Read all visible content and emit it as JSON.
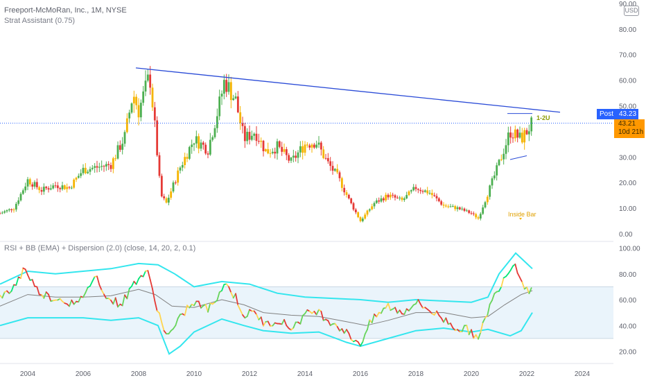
{
  "legend": {
    "title": "Freeport-McMoRan, Inc., 1M, NYSE",
    "indicator": "Strat Assistant (0.75)",
    "rsi_indicator": "RSI + BB (EMA) + Dispersion (2.0) (close, 14, 20, 2, 0.1)"
  },
  "currency": "USD",
  "post": {
    "label": "Post",
    "value": "43.23"
  },
  "last": {
    "value": "43.21",
    "countdown": "10d 21h"
  },
  "annotations": {
    "inside_bar": "Inside Bar",
    "pattern_marker": "1-2U"
  },
  "colors": {
    "up": "#26a69a",
    "down": "#ef5350",
    "neutral": "#f5b400",
    "trendline": "#2a4bd7",
    "bb": "#33e6ee",
    "rsi_mid": "#808080",
    "rsi_band": "#e8f3fb"
  },
  "chart_data": [
    {
      "type": "candlestick",
      "title": "Freeport-McMoRan, Inc., 1M, NYSE",
      "ylim": [
        0,
        90
      ],
      "yticks": [
        "0.00",
        "10.00",
        "20.00",
        "30.00",
        "40.00",
        "50.00",
        "60.00",
        "70.00",
        "80.00",
        "90.00"
      ],
      "xticks": [
        "2004",
        "2006",
        "2008",
        "2010",
        "2012",
        "2014",
        "2016",
        "2018",
        "2020",
        "2022",
        "2024"
      ],
      "price_path": [
        [
          2003.0,
          8
        ],
        [
          2003.5,
          10
        ],
        [
          2004.0,
          21
        ],
        [
          2004.5,
          17
        ],
        [
          2005.0,
          19
        ],
        [
          2005.5,
          18
        ],
        [
          2006.0,
          25
        ],
        [
          2006.5,
          26
        ],
        [
          2007.0,
          27
        ],
        [
          2007.5,
          38
        ],
        [
          2007.8,
          55
        ],
        [
          2008.0,
          48
        ],
        [
          2008.4,
          62
        ],
        [
          2008.6,
          40
        ],
        [
          2008.8,
          15
        ],
        [
          2009.0,
          12
        ],
        [
          2009.5,
          26
        ],
        [
          2010.0,
          37
        ],
        [
          2010.5,
          33
        ],
        [
          2010.9,
          50
        ],
        [
          2011.1,
          60
        ],
        [
          2011.5,
          52
        ],
        [
          2011.8,
          37
        ],
        [
          2012.2,
          40
        ],
        [
          2012.6,
          32
        ],
        [
          2013.0,
          34
        ],
        [
          2013.5,
          28
        ],
        [
          2014.0,
          35
        ],
        [
          2014.4,
          36
        ],
        [
          2014.8,
          28
        ],
        [
          2015.2,
          22
        ],
        [
          2015.6,
          13
        ],
        [
          2016.0,
          5
        ],
        [
          2016.5,
          12
        ],
        [
          2017.0,
          15
        ],
        [
          2017.5,
          13
        ],
        [
          2018.0,
          18
        ],
        [
          2018.5,
          16
        ],
        [
          2019.0,
          11
        ],
        [
          2019.5,
          10
        ],
        [
          2020.0,
          8
        ],
        [
          2020.25,
          6
        ],
        [
          2020.6,
          16
        ],
        [
          2020.95,
          26
        ],
        [
          2021.4,
          40
        ],
        [
          2021.8,
          37
        ],
        [
          2022.0,
          40
        ],
        [
          2022.2,
          43.2
        ]
      ],
      "trendline": [
        [
          2007.9,
          64.8
        ],
        [
          2023.2,
          47.5
        ]
      ],
      "range_box": {
        "upper": [
          [
            2021.3,
            47
          ],
          [
            2022.2,
            47
          ]
        ],
        "lower": [
          [
            2021.4,
            29
          ],
          [
            2022.0,
            30.5
          ]
        ]
      },
      "current_price": 43.21
    },
    {
      "type": "line",
      "title": "RSI + BB (EMA) + Dispersion (2.0) (close, 14, 20, 2, 0.1)",
      "ylim": [
        15,
        105
      ],
      "yticks": [
        "20.00",
        "40.00",
        "60.00",
        "80.00",
        "100.00"
      ],
      "band": [
        30,
        70
      ],
      "series": [
        {
          "role": "rsi",
          "points": [
            [
              2003.0,
              60
            ],
            [
              2003.5,
              70
            ],
            [
              2003.9,
              85
            ],
            [
              2004.3,
              68
            ],
            [
              2004.8,
              62
            ],
            [
              2005.3,
              60
            ],
            [
              2005.8,
              55
            ],
            [
              2006.1,
              68
            ],
            [
              2006.5,
              78
            ],
            [
              2006.9,
              60
            ],
            [
              2007.4,
              57
            ],
            [
              2007.9,
              75
            ],
            [
              2008.3,
              82
            ],
            [
              2008.6,
              60
            ],
            [
              2008.85,
              40
            ],
            [
              2009.1,
              32
            ],
            [
              2009.4,
              42
            ],
            [
              2009.8,
              55
            ],
            [
              2010.2,
              57
            ],
            [
              2010.5,
              52
            ],
            [
              2010.9,
              65
            ],
            [
              2011.1,
              73
            ],
            [
              2011.5,
              62
            ],
            [
              2011.8,
              48
            ],
            [
              2012.2,
              50
            ],
            [
              2012.6,
              40
            ],
            [
              2013.0,
              45
            ],
            [
              2013.5,
              38
            ],
            [
              2014.0,
              48
            ],
            [
              2014.4,
              52
            ],
            [
              2014.8,
              45
            ],
            [
              2015.2,
              40
            ],
            [
              2015.6,
              32
            ],
            [
              2016.0,
              26
            ],
            [
              2016.3,
              40
            ],
            [
              2016.6,
              48
            ],
            [
              2017.0,
              55
            ],
            [
              2017.5,
              50
            ],
            [
              2018.0,
              58
            ],
            [
              2018.5,
              52
            ],
            [
              2019.0,
              45
            ],
            [
              2019.5,
              38
            ],
            [
              2020.0,
              36
            ],
            [
              2020.25,
              28
            ],
            [
              2020.6,
              52
            ],
            [
              2020.95,
              68
            ],
            [
              2021.3,
              82
            ],
            [
              2021.6,
              88
            ],
            [
              2021.8,
              76
            ],
            [
              2022.0,
              68
            ],
            [
              2022.2,
              67
            ]
          ]
        },
        {
          "role": "basis",
          "points": [
            [
              2003.0,
              55
            ],
            [
              2004.0,
              64
            ],
            [
              2005.0,
              62
            ],
            [
              2006.0,
              62
            ],
            [
              2007.0,
              63
            ],
            [
              2008.0,
              68
            ],
            [
              2008.6,
              64
            ],
            [
              2009.2,
              55
            ],
            [
              2010.0,
              54
            ],
            [
              2011.0,
              60
            ],
            [
              2011.8,
              56
            ],
            [
              2012.5,
              50
            ],
            [
              2013.5,
              48
            ],
            [
              2014.5,
              47
            ],
            [
              2015.5,
              43
            ],
            [
              2016.2,
              40
            ],
            [
              2017.0,
              44
            ],
            [
              2018.0,
              50
            ],
            [
              2019.0,
              50
            ],
            [
              2020.0,
              46
            ],
            [
              2020.6,
              47
            ],
            [
              2021.2,
              56
            ],
            [
              2021.8,
              64
            ],
            [
              2022.2,
              67
            ]
          ]
        },
        {
          "role": "bb_upper",
          "points": [
            [
              2003.0,
              72
            ],
            [
              2004.0,
              82
            ],
            [
              2005.0,
              80
            ],
            [
              2006.0,
              82
            ],
            [
              2007.0,
              84
            ],
            [
              2008.0,
              88
            ],
            [
              2008.7,
              87
            ],
            [
              2009.3,
              80
            ],
            [
              2010.0,
              70
            ],
            [
              2011.0,
              74
            ],
            [
              2012.0,
              72
            ],
            [
              2013.0,
              65
            ],
            [
              2014.0,
              62
            ],
            [
              2015.0,
              61
            ],
            [
              2016.0,
              60
            ],
            [
              2017.0,
              58
            ],
            [
              2018.0,
              60
            ],
            [
              2019.0,
              59
            ],
            [
              2020.0,
              58
            ],
            [
              2020.6,
              62
            ],
            [
              2021.0,
              80
            ],
            [
              2021.6,
              96
            ],
            [
              2022.2,
              84
            ]
          ]
        },
        {
          "role": "bb_lower",
          "points": [
            [
              2003.0,
              40
            ],
            [
              2004.0,
              46
            ],
            [
              2005.0,
              46
            ],
            [
              2006.0,
              46
            ],
            [
              2007.0,
              44
            ],
            [
              2008.0,
              46
            ],
            [
              2008.7,
              40
            ],
            [
              2009.1,
              18
            ],
            [
              2009.5,
              24
            ],
            [
              2010.0,
              35
            ],
            [
              2011.0,
              45
            ],
            [
              2011.8,
              40
            ],
            [
              2012.5,
              36
            ],
            [
              2013.5,
              34
            ],
            [
              2014.5,
              35
            ],
            [
              2015.5,
              27
            ],
            [
              2016.0,
              24
            ],
            [
              2017.0,
              30
            ],
            [
              2018.0,
              36
            ],
            [
              2019.0,
              38
            ],
            [
              2020.0,
              35
            ],
            [
              2020.6,
              37
            ],
            [
              2021.4,
              32
            ],
            [
              2021.8,
              36
            ],
            [
              2022.2,
              50
            ]
          ]
        }
      ]
    }
  ]
}
